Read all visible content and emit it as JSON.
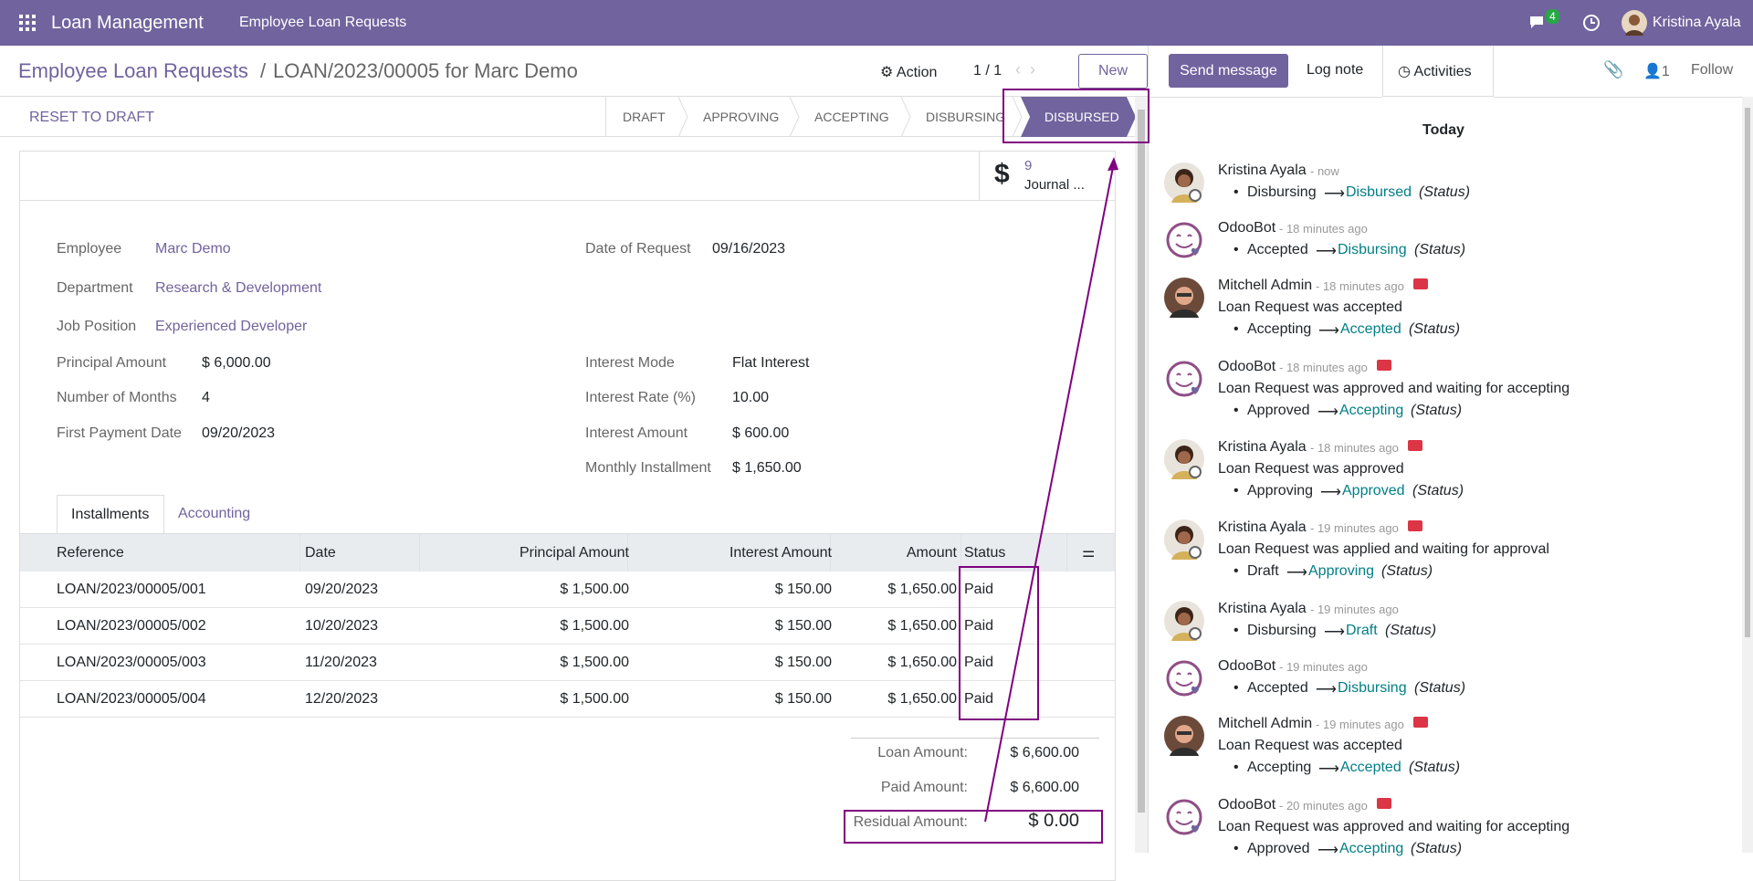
{
  "navbar": {
    "app": "Loan Management",
    "menu": "Employee Loan Requests",
    "badge": "4",
    "user": "Kristina Ayala"
  },
  "breadcrumb": {
    "parent": "Employee Loan Requests",
    "separator": "/",
    "current": "LOAN/2023/00005 for Marc Demo"
  },
  "controls": {
    "action": "Action",
    "pager": "1 / 1",
    "new": "New"
  },
  "reset": "RESET TO DRAFT",
  "stages": [
    "DRAFT",
    "APPROVING",
    "ACCEPTING",
    "DISBURSING",
    "DISBURSED"
  ],
  "smart_button": {
    "count": "9",
    "label": "Journal ..."
  },
  "fields_left": [
    [
      "Employee",
      "Marc Demo"
    ],
    [
      "Department",
      "Research & Development"
    ],
    [
      "Job Position",
      "Experienced Developer"
    ],
    [
      "Principal Amount",
      "$ 6,000.00"
    ],
    [
      "Number of Months",
      "4"
    ],
    [
      "First Payment Date",
      "09/20/2023"
    ]
  ],
  "fields_right": [
    [
      "Date of Request",
      "09/16/2023"
    ],
    [
      "Interest Mode",
      "Flat Interest"
    ],
    [
      "Interest Rate (%)",
      "10.00"
    ],
    [
      "Interest Amount",
      "$ 600.00"
    ],
    [
      "Monthly Installment",
      "$ 1,650.00"
    ]
  ],
  "tabs": [
    "Installments",
    "Accounting"
  ],
  "table": {
    "headers": [
      "Reference",
      "Date",
      "Principal Amount",
      "Interest Amount",
      "Amount",
      "Status"
    ],
    "rows": [
      [
        "LOAN/2023/00005/001",
        "09/20/2023",
        "$ 1,500.00",
        "$ 150.00",
        "$ 1,650.00",
        "Paid"
      ],
      [
        "LOAN/2023/00005/002",
        "10/20/2023",
        "$ 1,500.00",
        "$ 150.00",
        "$ 1,650.00",
        "Paid"
      ],
      [
        "LOAN/2023/00005/003",
        "11/20/2023",
        "$ 1,500.00",
        "$ 150.00",
        "$ 1,650.00",
        "Paid"
      ],
      [
        "LOAN/2023/00005/004",
        "12/20/2023",
        "$ 1,500.00",
        "$ 150.00",
        "$ 1,650.00",
        "Paid"
      ]
    ]
  },
  "totals": [
    [
      "Loan Amount:",
      "$ 6,600.00"
    ],
    [
      "Paid Amount:",
      "$ 6,600.00"
    ],
    [
      "Residual Amount:",
      "$ 0.00"
    ]
  ],
  "chatter": {
    "send": "Send message",
    "log": "Log note",
    "activities": "Activities",
    "followers": "1",
    "follow": "Follow",
    "day": "Today",
    "messages": [
      {
        "author": "Kristina Ayala",
        "time": "- now",
        "avatar": "woman",
        "mail": false,
        "from": "Disbursing",
        "to": "Disbursed",
        "field": "(Status)"
      },
      {
        "author": "OdooBot",
        "time": "- 18 minutes ago",
        "avatar": "bot",
        "mail": false,
        "from": "Accepted",
        "to": "Disbursing",
        "field": "(Status)"
      },
      {
        "author": "Mitchell Admin",
        "time": "- 18 minutes ago",
        "avatar": "man",
        "mail": true,
        "text": "Loan Request was accepted",
        "from": "Accepting",
        "to": "Accepted",
        "field": "(Status)"
      },
      {
        "author": "OdooBot",
        "time": "- 18 minutes ago",
        "avatar": "bot",
        "mail": true,
        "text": "Loan Request was approved and waiting for accepting",
        "from": "Approved",
        "to": "Accepting",
        "field": "(Status)"
      },
      {
        "author": "Kristina Ayala",
        "time": "- 18 minutes ago",
        "avatar": "woman",
        "mail": true,
        "text": "Loan Request was approved",
        "from": "Approving",
        "to": "Approved",
        "field": "(Status)"
      },
      {
        "author": "Kristina Ayala",
        "time": "- 19 minutes ago",
        "avatar": "woman",
        "mail": true,
        "text": "Loan Request was applied and waiting for approval",
        "from": "Draft",
        "to": "Approving",
        "field": "(Status)"
      },
      {
        "author": "Kristina Ayala",
        "time": "- 19 minutes ago",
        "avatar": "woman",
        "mail": false,
        "from": "Disbursing",
        "to": "Draft",
        "field": "(Status)"
      },
      {
        "author": "OdooBot",
        "time": "- 19 minutes ago",
        "avatar": "bot",
        "mail": false,
        "from": "Accepted",
        "to": "Disbursing",
        "field": "(Status)"
      },
      {
        "author": "Mitchell Admin",
        "time": "- 19 minutes ago",
        "avatar": "man",
        "mail": true,
        "text": "Loan Request was accepted",
        "from": "Accepting",
        "to": "Accepted",
        "field": "(Status)"
      },
      {
        "author": "OdooBot",
        "time": "- 20 minutes ago",
        "avatar": "bot",
        "mail": true,
        "text": "Loan Request was approved and waiting for accepting",
        "from": "Approved",
        "to": "Accepting",
        "field": "(Status)"
      }
    ]
  }
}
